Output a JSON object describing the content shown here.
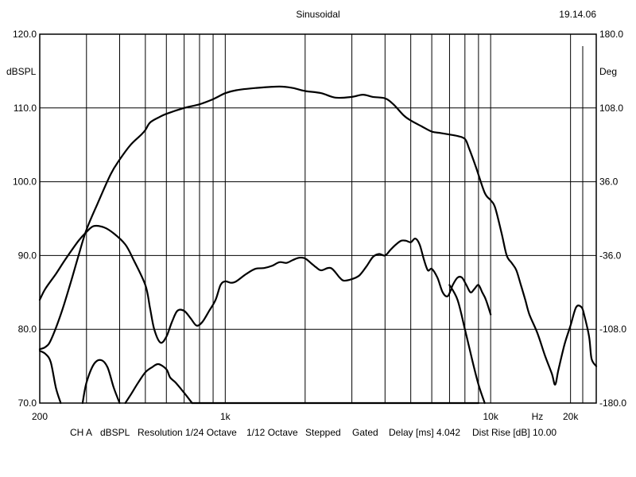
{
  "header": {
    "title": "Sinusoidal",
    "time": "19.14.06"
  },
  "footer": {
    "parts": [
      "CH A",
      "dBSPL",
      "Resolution 1/24 Octave",
      "1/12 Octave",
      "Stepped",
      "Gated",
      "Delay [ms] 4.042",
      "Dist Rise [dB] 10.00"
    ]
  },
  "chart_data": {
    "type": "line",
    "title": "Sinusoidal",
    "x_scale": "log",
    "xlim": [
      200,
      25000
    ],
    "x_ticks": [
      {
        "value": 200,
        "label": "200"
      },
      {
        "value": 1000,
        "label": "1k"
      },
      {
        "value": 10000,
        "label": "10k"
      },
      {
        "value": 15000,
        "label": "Hz"
      },
      {
        "value": 20000,
        "label": "20k"
      }
    ],
    "x_gridlines": [
      300,
      400,
      500,
      600,
      700,
      800,
      900,
      1000,
      2000,
      3000,
      4000,
      5000,
      6000,
      7000,
      8000,
      9000,
      10000,
      20000
    ],
    "ylabel": "dBSPL",
    "ylim": [
      70,
      120
    ],
    "y_ticks": [
      "120.0",
      "110.0",
      "100.0",
      "90.0",
      "80.0",
      "70.0"
    ],
    "y2label": "Deg",
    "y2lim": [
      -180,
      180
    ],
    "y2_ticks": [
      "180.0",
      "108.0",
      "36.0",
      "-36.0",
      "-108.0",
      "-180.0"
    ],
    "grid": true,
    "series": [
      {
        "axis": "left",
        "points": [
          [
            200,
            77.3
          ],
          [
            210,
            77.6
          ],
          [
            220,
            78.5
          ],
          [
            240,
            82
          ],
          [
            260,
            86
          ],
          [
            280,
            90
          ],
          [
            300,
            93.5
          ],
          [
            330,
            97
          ],
          [
            370,
            101
          ],
          [
            400,
            103
          ],
          [
            440,
            105
          ],
          [
            480,
            106.3
          ],
          [
            500,
            107
          ],
          [
            520,
            108
          ],
          [
            560,
            108.7
          ],
          [
            600,
            109.2
          ],
          [
            700,
            110
          ],
          [
            800,
            110.5
          ],
          [
            900,
            111.2
          ],
          [
            1000,
            112
          ],
          [
            1100,
            112.4
          ],
          [
            1300,
            112.7
          ],
          [
            1600,
            112.9
          ],
          [
            1800,
            112.7
          ],
          [
            2000,
            112.3
          ],
          [
            2300,
            112
          ],
          [
            2600,
            111.4
          ],
          [
            3000,
            111.5
          ],
          [
            3300,
            111.8
          ],
          [
            3600,
            111.5
          ],
          [
            4000,
            111.3
          ],
          [
            4300,
            110.5
          ],
          [
            4700,
            109
          ],
          [
            5000,
            108.3
          ],
          [
            5500,
            107.5
          ],
          [
            6000,
            106.8
          ],
          [
            6500,
            106.6
          ],
          [
            7000,
            106.4
          ],
          [
            7500,
            106.2
          ],
          [
            8000,
            105.8
          ],
          [
            8300,
            104.5
          ],
          [
            8800,
            102
          ],
          [
            9500,
            98.5
          ],
          [
            10000,
            97.5
          ],
          [
            10400,
            96.5
          ],
          [
            11000,
            93
          ],
          [
            11500,
            90
          ],
          [
            12000,
            89
          ],
          [
            12500,
            88
          ],
          [
            13000,
            86
          ],
          [
            13500,
            84
          ],
          [
            14000,
            82
          ],
          [
            15000,
            79.5
          ],
          [
            16000,
            76.5
          ],
          [
            17000,
            74
          ],
          [
            17500,
            72.5
          ],
          [
            18000,
            74.5
          ],
          [
            19000,
            78
          ],
          [
            20000,
            80.5
          ],
          [
            21000,
            83
          ],
          [
            22000,
            83
          ],
          [
            22500,
            82
          ],
          [
            23500,
            79
          ],
          [
            24000,
            76
          ],
          [
            25000,
            75
          ]
        ]
      },
      {
        "axis": "left",
        "points": [
          [
            200,
            84
          ],
          [
            210,
            85.5
          ],
          [
            230,
            87.5
          ],
          [
            250,
            89.5
          ],
          [
            280,
            92
          ],
          [
            300,
            93.2
          ],
          [
            320,
            94
          ],
          [
            350,
            93.8
          ],
          [
            380,
            93
          ],
          [
            420,
            91.5
          ],
          [
            450,
            89.5
          ],
          [
            500,
            86
          ],
          [
            520,
            83
          ],
          [
            540,
            80
          ],
          [
            570,
            78.2
          ],
          [
            600,
            79
          ],
          [
            630,
            81
          ],
          [
            660,
            82.5
          ],
          [
            700,
            82.5
          ],
          [
            740,
            81.5
          ],
          [
            780,
            80.5
          ],
          [
            820,
            81
          ],
          [
            870,
            82.5
          ],
          [
            920,
            84
          ],
          [
            960,
            86
          ],
          [
            1000,
            86.5
          ],
          [
            1050,
            86.3
          ],
          [
            1100,
            86.5
          ],
          [
            1200,
            87.5
          ],
          [
            1300,
            88.2
          ],
          [
            1400,
            88.3
          ],
          [
            1500,
            88.6
          ],
          [
            1600,
            89.1
          ],
          [
            1700,
            89
          ],
          [
            1800,
            89.4
          ],
          [
            1900,
            89.7
          ],
          [
            2000,
            89.6
          ],
          [
            2100,
            89
          ],
          [
            2200,
            88.4
          ],
          [
            2300,
            88
          ],
          [
            2500,
            88.3
          ],
          [
            2700,
            87
          ],
          [
            2800,
            86.6
          ],
          [
            3000,
            86.8
          ],
          [
            3200,
            87.3
          ],
          [
            3400,
            88.5
          ],
          [
            3600,
            89.8
          ],
          [
            3800,
            90.2
          ],
          [
            4000,
            90
          ],
          [
            4200,
            90.8
          ],
          [
            4400,
            91.5
          ],
          [
            4600,
            92
          ],
          [
            4800,
            92
          ],
          [
            5000,
            91.8
          ],
          [
            5200,
            92.3
          ],
          [
            5400,
            91.5
          ],
          [
            5600,
            89.5
          ],
          [
            5800,
            88
          ],
          [
            6000,
            88.2
          ],
          [
            6300,
            87
          ],
          [
            6600,
            85
          ],
          [
            6900,
            84.5
          ],
          [
            7200,
            86
          ],
          [
            7500,
            87
          ],
          [
            7800,
            87
          ],
          [
            8100,
            86
          ],
          [
            8400,
            85
          ],
          [
            8700,
            85.5
          ],
          [
            9000,
            86
          ],
          [
            9300,
            85
          ],
          [
            9600,
            84
          ],
          [
            10000,
            82
          ]
        ]
      },
      {
        "axis": "right",
        "points": [
          [
            200,
            -129
          ],
          [
            210,
            -132
          ],
          [
            220,
            -140
          ],
          [
            230,
            -165
          ],
          [
            240,
            -180
          ]
        ]
      },
      {
        "axis": "right",
        "points": [
          [
            290,
            -180
          ],
          [
            300,
            -160
          ],
          [
            320,
            -142
          ],
          [
            340,
            -138
          ],
          [
            360,
            -145
          ],
          [
            380,
            -165
          ],
          [
            400,
            -180
          ]
        ]
      },
      {
        "axis": "right",
        "points": [
          [
            420,
            -180
          ],
          [
            440,
            -172
          ],
          [
            470,
            -160
          ],
          [
            500,
            -150
          ],
          [
            530,
            -145
          ],
          [
            560,
            -142
          ],
          [
            600,
            -147
          ],
          [
            620,
            -155
          ],
          [
            650,
            -160
          ],
          [
            700,
            -170
          ],
          [
            750,
            -180
          ]
        ]
      },
      {
        "axis": "left",
        "points": [
          [
            750,
            70
          ],
          [
            9000,
            70
          ]
        ]
      },
      {
        "axis": "left",
        "points": [
          [
            7000,
            86
          ],
          [
            7500,
            84
          ],
          [
            8000,
            80
          ],
          [
            8500,
            76
          ],
          [
            9000,
            72.5
          ],
          [
            9500,
            70
          ]
        ]
      }
    ]
  }
}
